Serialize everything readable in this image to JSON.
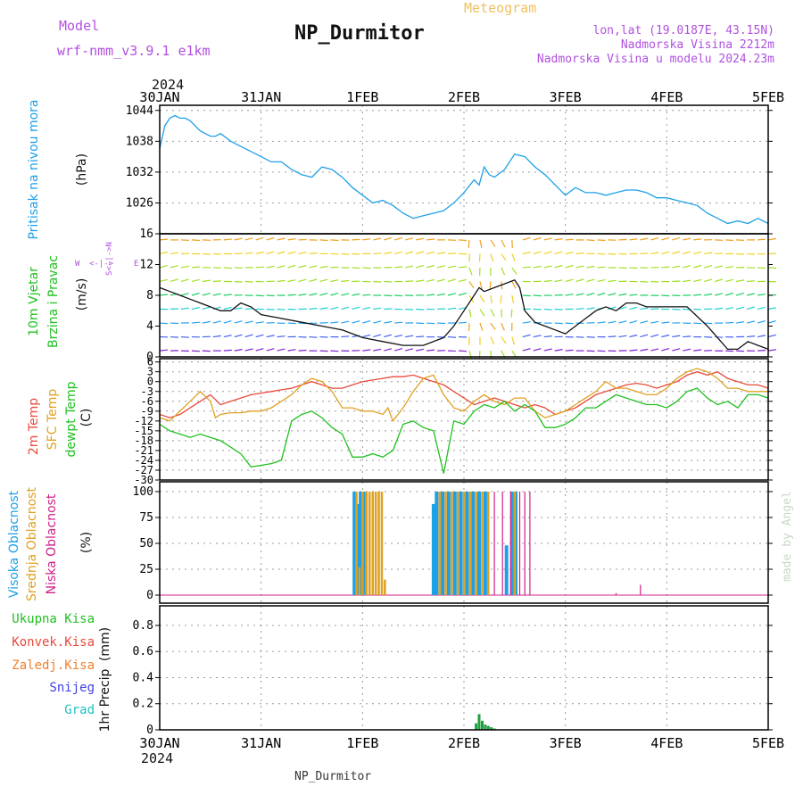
{
  "header": {
    "model_label": "Model",
    "model_name": "wrf-nmm_v3.9.1  e1km",
    "station_title": "NP_Durmitor",
    "product": "Meteogram",
    "lonlat": "lon,lat (19.0187E, 43.15N)",
    "altitude": "Nadmorska Visina 2212m",
    "model_altitude": "Nadmorska Visina u modelu 2024.23m",
    "year": "2024",
    "footer": "NP_Durmitor",
    "credit": "made by Angel"
  },
  "colors": {
    "pressure": "#1ea0e6",
    "t2m": "#e84a3c",
    "sfc": "#e0a020",
    "dewpt": "#20c020",
    "high_cloud": "#1ea0e6",
    "mid_cloud": "#e0a020",
    "low_cloud": "#d0208a",
    "total_precip": "#20a040",
    "convective": "#e84a3c",
    "frozen": "#f08030",
    "snow": "#4040e0",
    "graupel": "#20c0c0",
    "label_purple": "#b050e0",
    "meteogram": "#f0c060"
  },
  "x_axis": {
    "ticks": [
      "30JAN",
      "31JAN",
      "1FEB",
      "2FEB",
      "3FEB",
      "4FEB",
      "5FEB"
    ],
    "days": [
      0,
      1,
      2,
      3,
      4,
      5,
      6
    ]
  },
  "chart_data": [
    {
      "type": "line",
      "ylabel": "Pritisak na nivou mora",
      "unit": "(hPa)",
      "yticks": [
        1026,
        1032,
        1038,
        1044
      ],
      "ylim": [
        1020,
        1045
      ],
      "grid": true,
      "series": [
        {
          "x": [
            0,
            0.05,
            0.1,
            0.15,
            0.2,
            0.25,
            0.3,
            0.4,
            0.5,
            0.55,
            0.6,
            0.7,
            0.8,
            0.9,
            1.0,
            1.1,
            1.2,
            1.3,
            1.4,
            1.5,
            1.6,
            1.7,
            1.8,
            1.9,
            2.0,
            2.1,
            2.2,
            2.3,
            2.4,
            2.5,
            2.6,
            2.7,
            2.8,
            2.9,
            3.0,
            3.1,
            3.15,
            3.2,
            3.25,
            3.3,
            3.4,
            3.5,
            3.6,
            3.7,
            3.8,
            3.9,
            4.0,
            4.1,
            4.2,
            4.3,
            4.4,
            4.5,
            4.6,
            4.7,
            4.8,
            4.9,
            5.0,
            5.1,
            5.2,
            5.3,
            5.4,
            5.5,
            5.6,
            5.7,
            5.8,
            5.9,
            6.0
          ],
          "y": [
            1036.5,
            1041,
            1042.5,
            1043,
            1042.5,
            1042.5,
            1042,
            1040,
            1039,
            1039,
            1039.5,
            1038,
            1037,
            1036,
            1035,
            1034,
            1034,
            1032.5,
            1031.5,
            1031,
            1033,
            1032.5,
            1031,
            1029,
            1027.5,
            1026,
            1026.5,
            1025.5,
            1024,
            1023,
            1023.5,
            1024,
            1024.5,
            1026,
            1028,
            1030.5,
            1029.5,
            1033,
            1031.5,
            1031,
            1032.5,
            1035.5,
            1035,
            1033,
            1031.5,
            1029.5,
            1027.5,
            1029,
            1028,
            1028,
            1027.5,
            1028,
            1028.5,
            1028.5,
            1028,
            1027,
            1027,
            1026.5,
            1026,
            1025.5,
            1024,
            1023,
            1022,
            1022.5,
            1022,
            1023,
            1022
          ]
        }
      ]
    },
    {
      "type": "line",
      "title": "10m Vjetar Brzina i Pravac",
      "ylabel": "10m Vjetar Brzina i Pravac",
      "unit": "(m/s)",
      "yticks": [
        0,
        4,
        8,
        12,
        16
      ],
      "ylim": [
        0,
        16
      ],
      "compass": {
        "w": "W",
        "e": "E",
        "n": "N",
        "s": "S"
      },
      "series": [
        {
          "name": "speed",
          "x": [
            0,
            0.1,
            0.2,
            0.3,
            0.4,
            0.5,
            0.6,
            0.7,
            0.8,
            0.9,
            1.0,
            1.2,
            1.4,
            1.6,
            1.8,
            2.0,
            2.2,
            2.4,
            2.6,
            2.8,
            2.9,
            3.0,
            3.1,
            3.15,
            3.2,
            3.3,
            3.4,
            3.5,
            3.55,
            3.6,
            3.7,
            3.8,
            3.9,
            4.0,
            4.1,
            4.2,
            4.3,
            4.4,
            4.5,
            4.6,
            4.7,
            4.8,
            5.0,
            5.2,
            5.4,
            5.5,
            5.6,
            5.7,
            5.8,
            5.9,
            6.0
          ],
          "y": [
            9,
            8.5,
            8,
            7.5,
            7,
            6.5,
            6,
            6,
            7,
            6.5,
            5.5,
            5,
            4.5,
            4,
            3.5,
            2.5,
            2,
            1.5,
            1.5,
            2.5,
            4,
            6,
            8,
            9,
            8.5,
            9,
            9.5,
            10,
            9,
            6,
            4.5,
            4,
            3.5,
            3,
            4,
            5,
            6,
            6.5,
            6,
            7,
            7,
            6.5,
            6.5,
            6.5,
            4,
            2.5,
            1,
            1,
            2,
            1.5,
            1
          ]
        }
      ]
    },
    {
      "type": "line",
      "ylabel": "Temp",
      "unit": "(C)",
      "yticks": [
        6,
        3,
        0,
        -3,
        -6,
        -9,
        -12,
        -15,
        -18,
        -21,
        -24,
        -27,
        -30
      ],
      "ylim": [
        -30,
        7
      ],
      "series": [
        {
          "name": "2m Temp",
          "x": [
            0,
            0.1,
            0.2,
            0.3,
            0.4,
            0.5,
            0.6,
            0.7,
            0.8,
            0.9,
            1.0,
            1.1,
            1.2,
            1.3,
            1.4,
            1.5,
            1.6,
            1.7,
            1.8,
            1.9,
            2.0,
            2.1,
            2.2,
            2.3,
            2.4,
            2.5,
            2.6,
            2.7,
            2.8,
            2.9,
            3.0,
            3.1,
            3.2,
            3.3,
            3.4,
            3.5,
            3.6,
            3.7,
            3.8,
            3.9,
            4.0,
            4.1,
            4.2,
            4.3,
            4.4,
            4.5,
            4.6,
            4.7,
            4.8,
            4.9,
            5.0,
            5.1,
            5.2,
            5.3,
            5.4,
            5.5,
            5.6,
            5.7,
            5.8,
            5.9,
            6.0
          ],
          "y": [
            -10,
            -11,
            -10,
            -8,
            -6,
            -4,
            -7,
            -6,
            -5,
            -4,
            -3.5,
            -3,
            -2.5,
            -2,
            -1,
            0,
            -1,
            -2,
            -2,
            -1,
            0,
            0.5,
            1,
            1.5,
            1.5,
            2,
            1,
            0,
            -1,
            -3,
            -5,
            -7,
            -6,
            -5,
            -6,
            -7,
            -8,
            -7,
            -8,
            -10,
            -9,
            -8,
            -6,
            -4,
            -3,
            -2,
            -1,
            -0.5,
            -1,
            -2,
            -1,
            0,
            2,
            3,
            2,
            3,
            1,
            0,
            -1,
            -1,
            -2
          ]
        },
        {
          "name": "SFC Temp",
          "x": [
            0,
            0.1,
            0.2,
            0.3,
            0.4,
            0.5,
            0.55,
            0.6,
            0.7,
            0.8,
            0.9,
            1.0,
            1.1,
            1.2,
            1.3,
            1.4,
            1.5,
            1.6,
            1.7,
            1.8,
            1.9,
            2.0,
            2.1,
            2.2,
            2.25,
            2.3,
            2.4,
            2.5,
            2.6,
            2.7,
            2.8,
            2.9,
            3.0,
            3.1,
            3.2,
            3.3,
            3.4,
            3.5,
            3.6,
            3.7,
            3.8,
            3.9,
            4.0,
            4.1,
            4.2,
            4.3,
            4.4,
            4.5,
            4.6,
            4.7,
            4.8,
            4.9,
            5.0,
            5.1,
            5.2,
            5.3,
            5.4,
            5.5,
            5.6,
            5.7,
            5.8,
            5.9,
            6.0
          ],
          "y": [
            -11,
            -12,
            -9,
            -6,
            -3,
            -6,
            -11,
            -10,
            -9.5,
            -9.5,
            -9,
            -9,
            -8,
            -6,
            -4,
            -1,
            1,
            0,
            -3,
            -8,
            -8,
            -9,
            -9,
            -10,
            -8,
            -12,
            -8,
            -3,
            1,
            2,
            -4,
            -8,
            -9,
            -6,
            -4,
            -6,
            -7,
            -5,
            -5,
            -9,
            -11,
            -10,
            -9,
            -7,
            -5,
            -3,
            0,
            -2,
            -2,
            -3,
            -4,
            -4,
            -2,
            1,
            3,
            4,
            3,
            1,
            -2,
            -2,
            -3,
            -3,
            -3
          ]
        },
        {
          "name": "dewpt Temp",
          "x": [
            0,
            0.1,
            0.2,
            0.3,
            0.4,
            0.5,
            0.6,
            0.7,
            0.8,
            0.9,
            1.0,
            1.1,
            1.2,
            1.3,
            1.4,
            1.5,
            1.6,
            1.7,
            1.8,
            1.9,
            2.0,
            2.1,
            2.15,
            2.2,
            2.3,
            2.4,
            2.5,
            2.6,
            2.7,
            2.8,
            2.9,
            3.0,
            3.1,
            3.2,
            3.3,
            3.4,
            3.5,
            3.6,
            3.7,
            3.8,
            3.9,
            4.0,
            4.1,
            4.2,
            4.3,
            4.4,
            4.5,
            4.6,
            4.7,
            4.8,
            4.9,
            5.0,
            5.1,
            5.2,
            5.3,
            5.4,
            5.5,
            5.6,
            5.7,
            5.8,
            5.9,
            6.0
          ],
          "y": [
            -13,
            -15,
            -16,
            -17,
            -16,
            -17,
            -18,
            -20,
            -22,
            -26,
            -25.5,
            -25,
            -24,
            -12,
            -10,
            -9,
            -11,
            -14,
            -16,
            -23,
            -23,
            -22,
            -22.5,
            -23,
            -21,
            -13,
            -12,
            -14,
            -15,
            -28,
            -12,
            -13,
            -9,
            -7,
            -8,
            -6,
            -9,
            -7,
            -9,
            -14,
            -14,
            -13,
            -11,
            -8,
            -8,
            -6,
            -4,
            -5,
            -6,
            -7,
            -7,
            -8,
            -6,
            -3,
            -2,
            -5,
            -7,
            -6,
            -8,
            -4,
            -4,
            -5
          ]
        }
      ]
    },
    {
      "type": "bar",
      "ylabel": "Oblacnost",
      "unit": "(%)",
      "yticks": [
        0,
        25,
        50,
        75,
        100
      ],
      "ylim": [
        0,
        100
      ],
      "series": [
        {
          "name": "Visoka Oblacnost",
          "x": [
            1.92,
            1.95,
            1.98,
            2.01,
            2.7,
            2.73,
            2.79,
            2.85,
            2.91,
            2.97,
            3.03,
            3.09,
            3.15,
            3.21,
            3.42,
            3.48,
            3.51
          ],
          "values": [
            100,
            88,
            100,
            100,
            88,
            100,
            100,
            100,
            100,
            100,
            100,
            100,
            100,
            100,
            48,
            100,
            100
          ]
        },
        {
          "name": "Srednja Oblacnost",
          "x": [
            1.94,
            1.97,
            2.0,
            2.04,
            2.07,
            2.1,
            2.13,
            2.16,
            2.19,
            2.22,
            2.76,
            2.82,
            2.88,
            2.94,
            3.0,
            3.06,
            3.12,
            3.18,
            3.24,
            3.5
          ],
          "values": [
            100,
            27,
            100,
            100,
            100,
            100,
            100,
            100,
            100,
            15,
            100,
            100,
            100,
            100,
            100,
            100,
            100,
            100,
            100,
            100
          ]
        },
        {
          "name": "Niska Oblacnost",
          "x": [
            3.3,
            3.38,
            3.46,
            3.55,
            3.6,
            3.65,
            4.5,
            4.74
          ],
          "values": [
            100,
            100,
            100,
            100,
            100,
            100,
            2,
            10
          ]
        }
      ]
    },
    {
      "type": "bar",
      "ylabel": "1hr Precip",
      "unit": "(mm)",
      "yticks": [
        0,
        0.2,
        0.4,
        0.6,
        0.8
      ],
      "ylim": [
        0,
        0.95
      ],
      "series": [
        {
          "name": "Ukupna Kisa",
          "x": [
            3.12,
            3.15,
            3.18,
            3.21,
            3.24,
            3.27,
            3.3
          ],
          "values": [
            0.05,
            0.12,
            0.07,
            0.04,
            0.03,
            0.02,
            0.01
          ]
        },
        {
          "name": "Konvek.Kisa",
          "x": [],
          "values": []
        },
        {
          "name": "Zaledj.Kisa",
          "x": [],
          "values": []
        },
        {
          "name": "Snijeg",
          "x": [],
          "values": []
        },
        {
          "name": "Grad",
          "x": [],
          "values": []
        }
      ]
    }
  ]
}
